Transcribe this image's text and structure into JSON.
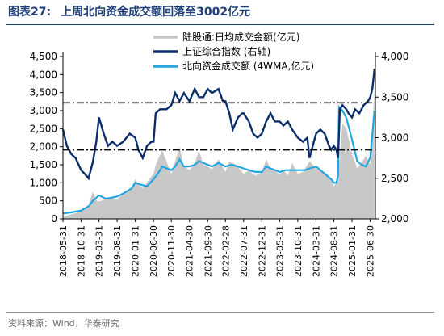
{
  "figure": {
    "number": "图表27:",
    "title": "上周北向资金成交额回落至3002亿元",
    "source": "资料来源：Wind，华泰研究"
  },
  "colors": {
    "title": "#1f3f7a",
    "gray_area": "#c8c8c8",
    "index_line": "#0b2e6b",
    "northbound_line": "#22a7e0",
    "reference_line": "#000000"
  },
  "chart_data": {
    "type": "line",
    "x_ticks": [
      "2018-05-31",
      "2018-10-31",
      "2019-03-31",
      "2019-08-31",
      "2020-01-31",
      "2020-06-30",
      "2020-11-30",
      "2021-04-30",
      "2021-09-30",
      "2022-02-28",
      "2022-07-31",
      "2022-12-31",
      "2023-05-31",
      "2023-10-31",
      "2024-03-31",
      "2024-08-31",
      "2025-01-31",
      "2025-06-30"
    ],
    "x_tick_positions": [
      2018.41,
      2018.83,
      2019.24,
      2019.66,
      2020.08,
      2020.5,
      2020.91,
      2021.33,
      2021.75,
      2022.16,
      2022.58,
      2023.0,
      2023.41,
      2023.83,
      2024.25,
      2024.66,
      2025.08,
      2025.5
    ],
    "x_range": [
      2018.41,
      2025.62
    ],
    "y_left": {
      "ticks": [
        "0",
        "500",
        "1,000",
        "1,500",
        "2,000",
        "2,500",
        "3,000",
        "3,500",
        "4,000",
        "4,500"
      ],
      "range": [
        0,
        4500
      ]
    },
    "y_right": {
      "ticks": [
        "2,000",
        "2,500",
        "3,000",
        "3,500",
        "4,000"
      ],
      "range": [
        2000,
        4000
      ]
    },
    "legend": [
      "陆股通:日均成交金额(亿元)",
      "上证综合指数 (右轴)",
      "北向资金成交额 (4WMA,亿元)"
    ],
    "series": [
      {
        "name": "陆股通:日均成交金额(亿元)",
        "axis": "left",
        "style": "area",
        "x": [
          2018.41,
          2018.6,
          2018.83,
          2019.0,
          2019.1,
          2019.2,
          2019.24,
          2019.4,
          2019.5,
          2019.66,
          2019.8,
          2020.0,
          2020.08,
          2020.15,
          2020.25,
          2020.4,
          2020.5,
          2020.55,
          2020.7,
          2020.91,
          2021.0,
          2021.1,
          2021.2,
          2021.33,
          2021.45,
          2021.55,
          2021.65,
          2021.75,
          2021.85,
          2022.0,
          2022.16,
          2022.25,
          2022.4,
          2022.58,
          2022.7,
          2022.85,
          2023.0,
          2023.1,
          2023.2,
          2023.41,
          2023.5,
          2023.6,
          2023.7,
          2023.83,
          2023.95,
          2024.1,
          2024.25,
          2024.4,
          2024.5,
          2024.6,
          2024.66,
          2024.75,
          2024.8,
          2024.86,
          2024.95,
          2025.08,
          2025.2,
          2025.3,
          2025.4,
          2025.5,
          2025.55,
          2025.6
        ],
        "values": [
          50,
          130,
          200,
          380,
          750,
          500,
          480,
          550,
          600,
          540,
          700,
          880,
          1100,
          950,
          850,
          1100,
          1250,
          1500,
          1900,
          1250,
          1600,
          2000,
          1450,
          1350,
          1550,
          1900,
          1500,
          1450,
          1380,
          1650,
          1300,
          1600,
          1500,
          1250,
          1350,
          1200,
          1300,
          1650,
          1400,
          1250,
          1350,
          1200,
          1550,
          1250,
          1300,
          1600,
          1400,
          1300,
          1250,
          1100,
          900,
          1100,
          1750,
          2650,
          2500,
          1800,
          1400,
          1550,
          1750,
          1500,
          2550,
          3600
        ]
      },
      {
        "name": "上证综合指数 (右轴)",
        "axis": "right",
        "style": "line",
        "x": [
          2018.41,
          2018.5,
          2018.6,
          2018.7,
          2018.83,
          2018.92,
          2019.0,
          2019.1,
          2019.18,
          2019.24,
          2019.35,
          2019.45,
          2019.55,
          2019.66,
          2019.8,
          2019.95,
          2020.08,
          2020.15,
          2020.25,
          2020.35,
          2020.45,
          2020.5,
          2020.55,
          2020.65,
          2020.8,
          2020.91,
          2021.0,
          2021.1,
          2021.2,
          2021.33,
          2021.45,
          2021.55,
          2021.65,
          2021.75,
          2021.85,
          2022.0,
          2022.1,
          2022.16,
          2022.25,
          2022.33,
          2022.45,
          2022.55,
          2022.58,
          2022.7,
          2022.8,
          2022.9,
          2023.0,
          2023.1,
          2023.2,
          2023.3,
          2023.41,
          2023.5,
          2023.6,
          2023.7,
          2023.83,
          2023.95,
          2024.05,
          2024.1,
          2024.2,
          2024.25,
          2024.35,
          2024.45,
          2024.55,
          2024.6,
          2024.66,
          2024.72,
          2024.76,
          2024.8,
          2024.86,
          2024.95,
          2025.0,
          2025.08,
          2025.15,
          2025.25,
          2025.35,
          2025.45,
          2025.5,
          2025.55,
          2025.6
        ],
        "values": [
          3100,
          2900,
          2800,
          2750,
          2600,
          2550,
          2500,
          2700,
          2950,
          3250,
          3050,
          2900,
          2950,
          2900,
          2950,
          3050,
          3000,
          2850,
          2750,
          2900,
          2950,
          2950,
          3300,
          3350,
          3350,
          3400,
          3550,
          3450,
          3550,
          3450,
          3600,
          3500,
          3500,
          3600,
          3550,
          3600,
          3450,
          3450,
          3300,
          3100,
          3250,
          3300,
          3300,
          3200,
          3050,
          3000,
          3050,
          3200,
          3300,
          3200,
          3200,
          3150,
          3200,
          3100,
          3000,
          2950,
          3000,
          2750,
          2950,
          3050,
          3100,
          3050,
          2900,
          2850,
          2900,
          2850,
          2750,
          3350,
          3400,
          3350,
          3300,
          3250,
          3350,
          3300,
          3400,
          3450,
          3500,
          3600,
          3850
        ]
      },
      {
        "name": "北向资金成交额 (4WMA,亿元)",
        "axis": "left",
        "style": "line",
        "x": [
          2018.41,
          2018.6,
          2018.83,
          2019.0,
          2019.1,
          2019.24,
          2019.4,
          2019.5,
          2019.66,
          2019.8,
          2020.0,
          2020.08,
          2020.2,
          2020.35,
          2020.5,
          2020.6,
          2020.7,
          2020.91,
          2021.0,
          2021.1,
          2021.2,
          2021.33,
          2021.45,
          2021.55,
          2021.65,
          2021.75,
          2021.85,
          2022.0,
          2022.16,
          2022.3,
          2022.45,
          2022.58,
          2022.7,
          2022.85,
          2023.0,
          2023.1,
          2023.2,
          2023.41,
          2023.55,
          2023.7,
          2023.83,
          2024.0,
          2024.1,
          2024.25,
          2024.4,
          2024.5,
          2024.6,
          2024.66,
          2024.72,
          2024.76,
          2024.78,
          2024.86,
          2024.95,
          2025.08,
          2025.2,
          2025.3,
          2025.4,
          2025.5,
          2025.55,
          2025.6
        ],
        "values": [
          150,
          180,
          230,
          350,
          500,
          650,
          560,
          580,
          620,
          700,
          850,
          1000,
          950,
          900,
          1100,
          1250,
          1450,
          1350,
          1450,
          1650,
          1450,
          1450,
          1500,
          1600,
          1550,
          1500,
          1450,
          1550,
          1450,
          1500,
          1450,
          1400,
          1350,
          1300,
          1300,
          1450,
          1400,
          1300,
          1350,
          1350,
          1350,
          1350,
          1400,
          1450,
          1300,
          1200,
          1100,
          1000,
          1000,
          1200,
          3100,
          3000,
          2800,
          2200,
          1600,
          1500,
          1450,
          1700,
          2350,
          3000
        ]
      }
    ],
    "reference_lines": [
      {
        "axis": "right",
        "value": 3430,
        "style": "dash-dot"
      },
      {
        "axis": "right",
        "value": 2850,
        "style": "dash-dot"
      }
    ],
    "grid": false,
    "legend_position": "top-center"
  }
}
